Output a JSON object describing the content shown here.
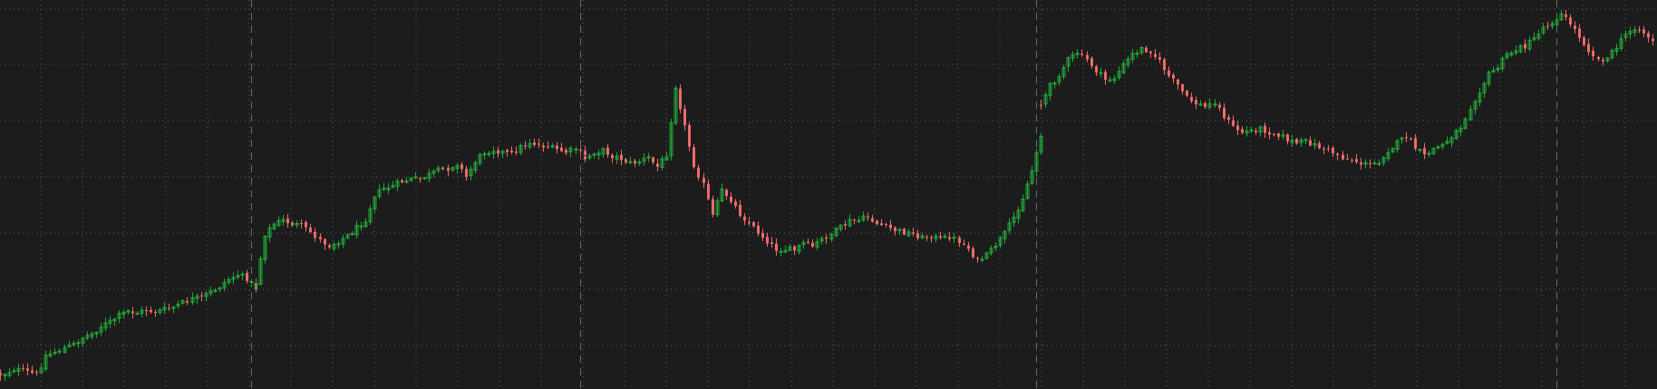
{
  "colors": {
    "background": "#1c1c1c",
    "grid": "#5a5a5a",
    "divider": "#6a6a6a",
    "up": "#22a83a",
    "down": "#ee6a6a"
  },
  "chart_data": {
    "type": "candlestick",
    "grid": true,
    "y_range": [
      0,
      429
    ],
    "x_range": [
      0,
      363
    ],
    "period_dividers": [
      55,
      127,
      227,
      341
    ],
    "sessions": [
      [
        [
          0,
          413
        ],
        [
          1,
          412
        ],
        [
          3,
          407
        ],
        [
          6,
          410
        ],
        [
          8,
          413
        ],
        [
          9,
          403
        ],
        [
          10,
          392
        ],
        [
          12,
          388
        ],
        [
          14,
          384
        ],
        [
          16,
          380
        ],
        [
          18,
          372
        ],
        [
          20,
          368
        ],
        [
          22,
          360
        ],
        [
          24,
          355
        ],
        [
          26,
          348
        ],
        [
          28,
          343
        ],
        [
          30,
          345
        ],
        [
          32,
          342
        ],
        [
          34,
          344
        ],
        [
          36,
          341
        ],
        [
          38,
          339
        ],
        [
          40,
          334
        ],
        [
          42,
          330
        ],
        [
          44,
          328
        ],
        [
          46,
          322
        ],
        [
          48,
          316
        ],
        [
          50,
          308
        ],
        [
          52,
          303
        ],
        [
          54,
          307
        ],
        [
          56,
          318
        ]
      ],
      [
        [
          56,
          312
        ],
        [
          58,
          258
        ],
        [
          60,
          247
        ],
        [
          62,
          243
        ],
        [
          64,
          247
        ],
        [
          66,
          249
        ],
        [
          68,
          256
        ],
        [
          70,
          265
        ],
        [
          72,
          271
        ],
        [
          74,
          266
        ],
        [
          76,
          260
        ],
        [
          78,
          251
        ],
        [
          80,
          242
        ],
        [
          82,
          215
        ],
        [
          84,
          208
        ],
        [
          86,
          205
        ],
        [
          88,
          200
        ],
        [
          90,
          198
        ],
        [
          92,
          197
        ],
        [
          94,
          193
        ],
        [
          96,
          188
        ],
        [
          98,
          186
        ],
        [
          100,
          180
        ],
        [
          102,
          195
        ],
        [
          104,
          178
        ],
        [
          106,
          168
        ],
        [
          108,
          165
        ],
        [
          110,
          168
        ],
        [
          112,
          170
        ],
        [
          114,
          162
        ],
        [
          116,
          157
        ],
        [
          118,
          160
        ],
        [
          120,
          162
        ],
        [
          122,
          165
        ],
        [
          124,
          168
        ],
        [
          126,
          164
        ],
        [
          128,
          172
        ]
      ],
      [
        [
          128,
          175
        ],
        [
          130,
          168
        ],
        [
          132,
          166
        ],
        [
          134,
          172
        ],
        [
          136,
          175
        ],
        [
          138,
          180
        ],
        [
          140,
          178
        ],
        [
          142,
          174
        ],
        [
          144,
          184
        ],
        [
          146,
          170
        ],
        [
          148,
          95
        ],
        [
          150,
          140
        ],
        [
          152,
          182
        ],
        [
          154,
          204
        ],
        [
          156,
          238
        ],
        [
          158,
          210
        ],
        [
          160,
          220
        ],
        [
          162,
          236
        ],
        [
          164,
          246
        ],
        [
          166,
          256
        ],
        [
          168,
          266
        ],
        [
          170,
          275
        ],
        [
          172,
          275
        ],
        [
          174,
          276
        ],
        [
          176,
          268
        ],
        [
          178,
          272
        ],
        [
          180,
          264
        ],
        [
          182,
          258
        ],
        [
          184,
          251
        ],
        [
          186,
          244
        ],
        [
          188,
          243
        ],
        [
          190,
          239
        ],
        [
          192,
          247
        ],
        [
          194,
          250
        ],
        [
          196,
          254
        ],
        [
          198,
          256
        ],
        [
          200,
          258
        ],
        [
          202,
          262
        ],
        [
          204,
          260
        ],
        [
          206,
          264
        ],
        [
          208,
          261
        ],
        [
          210,
          266
        ],
        [
          212,
          274
        ],
        [
          214,
          288
        ],
        [
          216,
          282
        ],
        [
          218,
          270
        ],
        [
          220,
          258
        ],
        [
          222,
          240
        ],
        [
          224,
          218
        ],
        [
          226,
          188
        ],
        [
          228,
          148
        ]
      ],
      [
        [
          228,
          115
        ],
        [
          230,
          95
        ],
        [
          232,
          82
        ],
        [
          234,
          66
        ],
        [
          236,
          58
        ],
        [
          238,
          66
        ],
        [
          240,
          78
        ],
        [
          242,
          88
        ],
        [
          244,
          86
        ],
        [
          246,
          72
        ],
        [
          248,
          60
        ],
        [
          250,
          54
        ],
        [
          252,
          56
        ],
        [
          254,
          68
        ],
        [
          256,
          84
        ],
        [
          258,
          94
        ],
        [
          260,
          108
        ],
        [
          262,
          114
        ],
        [
          264,
          118
        ],
        [
          266,
          112
        ],
        [
          268,
          128
        ],
        [
          270,
          140
        ],
        [
          272,
          146
        ],
        [
          274,
          144
        ],
        [
          276,
          142
        ],
        [
          278,
          146
        ],
        [
          280,
          148
        ],
        [
          282,
          154
        ],
        [
          284,
          158
        ],
        [
          286,
          156
        ],
        [
          288,
          160
        ],
        [
          290,
          164
        ],
        [
          292,
          168
        ],
        [
          294,
          174
        ],
        [
          296,
          176
        ],
        [
          298,
          180
        ],
        [
          300,
          182
        ],
        [
          302,
          178
        ],
        [
          304,
          166
        ],
        [
          306,
          158
        ],
        [
          308,
          150
        ],
        [
          310,
          163
        ],
        [
          312,
          172
        ],
        [
          314,
          164
        ],
        [
          316,
          160
        ],
        [
          318,
          150
        ],
        [
          320,
          140
        ],
        [
          322,
          118
        ],
        [
          324,
          100
        ],
        [
          326,
          82
        ],
        [
          328,
          74
        ],
        [
          330,
          60
        ],
        [
          332,
          55
        ],
        [
          334,
          50
        ]
      ],
      [
        [
          334,
          52
        ],
        [
          336,
          42
        ],
        [
          338,
          30
        ],
        [
          340,
          24
        ],
        [
          342,
          16
        ],
        [
          344,
          26
        ],
        [
          346,
          40
        ],
        [
          348,
          55
        ],
        [
          350,
          66
        ],
        [
          352,
          64
        ],
        [
          354,
          52
        ],
        [
          356,
          38
        ],
        [
          358,
          30
        ],
        [
          360,
          36
        ],
        [
          362,
          46
        ]
      ]
    ]
  }
}
